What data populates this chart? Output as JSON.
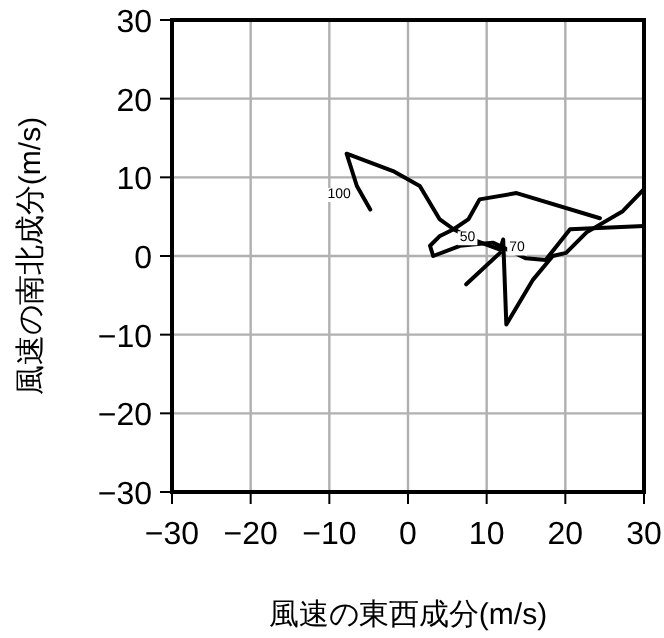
{
  "chart_data": {
    "type": "line",
    "xlabel": "風速の東西成分(m/s)",
    "ylabel": "風速の南北成分(m/s)",
    "xlim": [
      -30,
      30
    ],
    "ylim": [
      -30,
      30
    ],
    "xticks": [
      -30,
      -20,
      -10,
      0,
      10,
      20,
      30
    ],
    "yticks": [
      -30,
      -20,
      -10,
      0,
      10,
      20,
      30
    ],
    "grid": true,
    "marker": "none",
    "line_style": "solid",
    "series": [
      {
        "color": "#000000",
        "x": [
          -4.8,
          -6.5,
          -7.8,
          -1.9,
          1.5,
          4,
          5.8,
          8.5,
          11.7,
          12.1,
          12.5,
          15.9,
          18.4,
          20.1,
          22.7,
          27.3,
          30
        ],
        "values": [
          5.9,
          8.9,
          13,
          10.8,
          8.9,
          4.7,
          3.4,
          2,
          0.8,
          2.1,
          -8.7,
          -3,
          0,
          0.4,
          3,
          5.7,
          8.5
        ]
      },
      {
        "color": "#000000",
        "x": [
          30,
          20.6,
          17.5,
          15,
          10.8,
          6.6,
          3.2,
          2.8,
          4,
          5.8,
          7.7,
          9.1,
          13.8,
          24.4
        ],
        "values": [
          3.8,
          3.4,
          -0.5,
          -0.3,
          1.7,
          1.3,
          0,
          1.3,
          2.5,
          3.4,
          4.7,
          7.2,
          8,
          4.8
        ]
      },
      {
        "color": "#000000",
        "x": [
          7.4,
          11.7
        ],
        "values": [
          -3.6,
          0.4
        ]
      }
    ],
    "annotations": [
      {
        "text": "100",
        "x": -6.5,
        "y": 8.9
      },
      {
        "text": "70",
        "x": 12.1,
        "y": 2.1
      },
      {
        "text": "50",
        "x": 5.8,
        "y": 3.4
      }
    ]
  }
}
